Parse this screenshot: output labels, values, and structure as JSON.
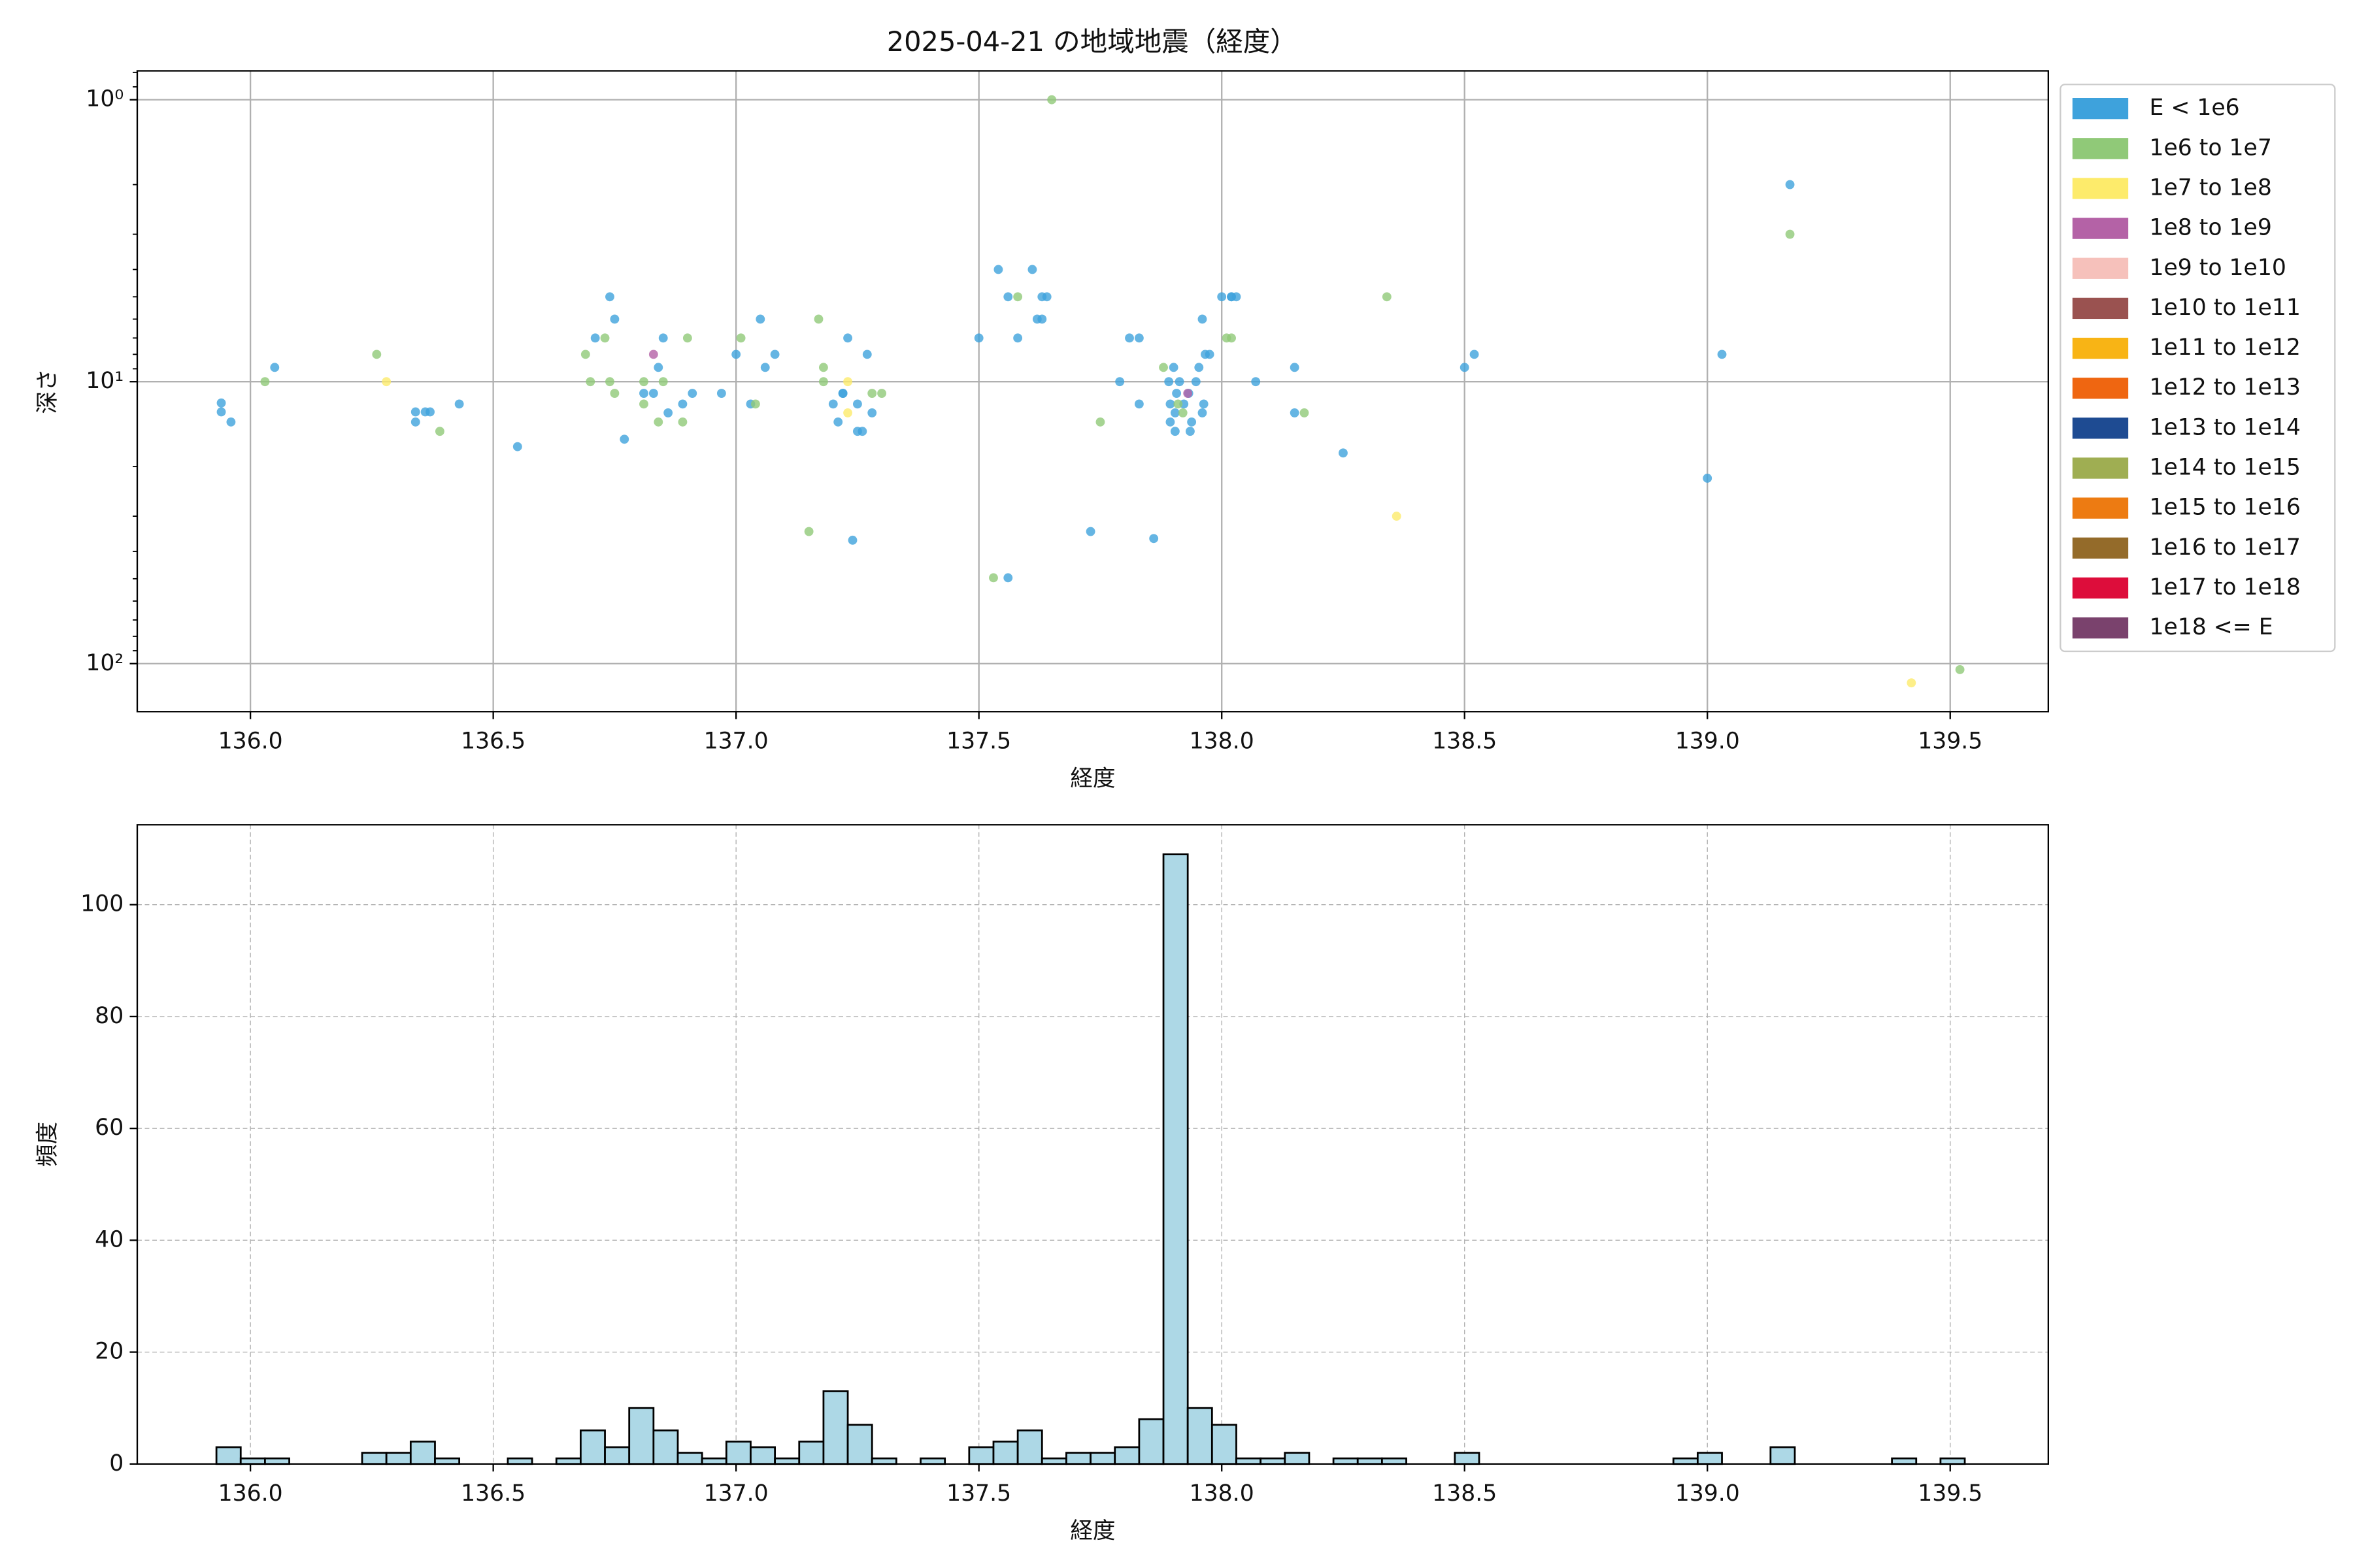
{
  "chart_data": [
    {
      "type": "scatter",
      "title": "2025-04-21 の地域地震（経度）",
      "xlabel": "経度",
      "ylabel": "深さ",
      "xlim": [
        135.767,
        139.702
      ],
      "xticks": [
        {
          "value": 136,
          "label": "136.0"
        },
        {
          "value": 136.5,
          "label": "136.5"
        },
        {
          "value": 137,
          "label": "137.0"
        },
        {
          "value": 137.5,
          "label": "137.5"
        },
        {
          "value": 138,
          "label": "138.0"
        },
        {
          "value": 138.5,
          "label": "138.5"
        },
        {
          "value": 139,
          "label": "139.0"
        },
        {
          "value": 139.5,
          "label": "139.5"
        }
      ],
      "ylim": [
        0.79,
        148
      ],
      "y_log": true,
      "y_inverted": true,
      "yticks": [
        {
          "value": 1,
          "label": "10⁰"
        },
        {
          "value": 10,
          "label": "10¹"
        },
        {
          "value": 100,
          "label": "10²"
        }
      ],
      "grid": true,
      "grid_style": "solid",
      "legend": "outside-right",
      "series": [
        {
          "name": "E < 1e6",
          "color": "#3ea2dc",
          "x": [
            135.94,
            135.94,
            135.96,
            136.05,
            136.34,
            136.34,
            136.36,
            136.37,
            136.43,
            136.55,
            136.74,
            136.75,
            136.71,
            136.81,
            136.84,
            136.85,
            136.77,
            136.83,
            136.86,
            136.89,
            136.91,
            136.97,
            137.0,
            137.03,
            137.05,
            137.06,
            137.08,
            137.2,
            137.21,
            137.22,
            137.23,
            137.22,
            137.24,
            137.25,
            137.25,
            137.26,
            137.27,
            137.28,
            137.5,
            137.54,
            137.56,
            137.56,
            137.58,
            137.61,
            137.62,
            137.63,
            137.64,
            137.63,
            137.73,
            137.79,
            137.81,
            137.83,
            137.83,
            137.86,
            137.891,
            137.901,
            137.907,
            137.894,
            137.904,
            137.894,
            137.904,
            137.913,
            137.922,
            137.932,
            137.938,
            137.947,
            137.953,
            137.963,
            137.966,
            137.975,
            137.935,
            137.96,
            137.96,
            138.0,
            138.02,
            138.02,
            138.03,
            138.07,
            138.15,
            138.15,
            138.25,
            138.5,
            138.52,
            139.0,
            139.03,
            139.17
          ],
          "y": [
            11.9,
            12.8,
            13.9,
            8.9,
            12.8,
            13.9,
            12.8,
            12.8,
            12.0,
            17.0,
            5.0,
            6.0,
            7.0,
            11.0,
            8.9,
            7.0,
            16.0,
            11.0,
            12.9,
            12.0,
            11.0,
            11.0,
            8.0,
            12.0,
            6.0,
            8.9,
            8.0,
            12.0,
            13.9,
            11.0,
            7.0,
            11.0,
            36.5,
            15.0,
            12.0,
            15.0,
            8.0,
            12.9,
            7.0,
            4.0,
            5.0,
            49.6,
            7.0,
            4.0,
            6.0,
            5.0,
            5.0,
            6.0,
            34,
            10,
            7,
            7,
            12,
            36,
            10,
            8.9,
            11.0,
            12.0,
            12.9,
            13.9,
            15.0,
            10,
            12.0,
            11.0,
            13.9,
            10,
            8.9,
            12.0,
            8.0,
            8.0,
            15.0,
            6.0,
            12.9,
            5,
            5,
            5,
            5,
            10,
            8.9,
            12.9,
            17.9,
            8.9,
            8.0,
            22,
            8.0,
            2.0
          ]
        },
        {
          "name": "1e6 to 1e7",
          "color": "#90c978",
          "x": [
            136.03,
            136.26,
            136.39,
            136.7,
            136.69,
            136.73,
            136.74,
            136.75,
            136.81,
            136.81,
            136.84,
            136.85,
            136.89,
            136.9,
            137.01,
            137.04,
            137.17,
            137.18,
            137.18,
            137.15,
            137.28,
            137.3,
            137.53,
            137.58,
            137.65,
            137.75,
            137.88,
            137.91,
            137.92,
            138.01,
            138.02,
            138.17,
            138.34,
            139.17,
            139.52
          ],
          "y": [
            10,
            8,
            15,
            10,
            8,
            7,
            10,
            11,
            12,
            10,
            13.9,
            10,
            13.9,
            7,
            7,
            12,
            6,
            8.9,
            10,
            34,
            11,
            11,
            49.6,
            5,
            1.0,
            13.9,
            8.9,
            12,
            12.9,
            7,
            7,
            12.9,
            5,
            3.0,
            105
          ]
        },
        {
          "name": "1e7 to 1e8",
          "color": "#fdeb6b",
          "x": [
            136.28,
            137.23,
            137.23,
            138.36,
            139.42
          ],
          "y": [
            10,
            10,
            12.9,
            30,
            117
          ]
        },
        {
          "name": "1e8 to 1e9",
          "color": "#b462a6",
          "x": [
            136.83,
            137.93
          ],
          "y": [
            8,
            11
          ]
        },
        {
          "name": "1e9 to 1e10",
          "color": "#f6c1bb",
          "x": [],
          "y": []
        },
        {
          "name": "1e10 to 1e11",
          "color": "#9a5250",
          "x": [],
          "y": []
        },
        {
          "name": "1e11 to 1e12",
          "color": "#f8b415",
          "x": [],
          "y": []
        },
        {
          "name": "1e12 to 1e13",
          "color": "#ef6611",
          "x": [],
          "y": []
        },
        {
          "name": "1e13 to 1e14",
          "color": "#1e4b92",
          "x": [],
          "y": []
        },
        {
          "name": "1e14 to 1e15",
          "color": "#9fae52",
          "x": [],
          "y": []
        },
        {
          "name": "1e15 to 1e16",
          "color": "#ed7b12",
          "x": [],
          "y": []
        },
        {
          "name": "1e16 to 1e17",
          "color": "#946b2a",
          "x": [],
          "y": []
        },
        {
          "name": "1e17 to 1e18",
          "color": "#dd0d3b",
          "x": [],
          "y": []
        },
        {
          "name": "1e18 <= E",
          "color": "#7a426d",
          "x": [],
          "y": []
        }
      ]
    },
    {
      "type": "histogram",
      "xlabel": "経度",
      "ylabel": "頻度",
      "color": "#add8e6",
      "edgecolor": "#000000",
      "xlim": [
        135.767,
        139.702
      ],
      "xticks": [
        {
          "value": 136,
          "label": "136.0"
        },
        {
          "value": 136.5,
          "label": "136.5"
        },
        {
          "value": 137,
          "label": "137.0"
        },
        {
          "value": 137.5,
          "label": "137.5"
        },
        {
          "value": 138,
          "label": "138.0"
        },
        {
          "value": 138.5,
          "label": "138.5"
        },
        {
          "value": 139,
          "label": "139.0"
        },
        {
          "value": 139.5,
          "label": "139.5"
        }
      ],
      "ylim": [
        0,
        114.3
      ],
      "yticks": [
        0,
        20,
        40,
        60,
        80,
        100
      ],
      "grid": true,
      "grid_style": "dashed",
      "bins": [
        135.93,
        135.98,
        136.03,
        136.08,
        136.13,
        136.18,
        136.23,
        136.28,
        136.33,
        136.38,
        136.43,
        136.48,
        136.53,
        136.58,
        136.63,
        136.68,
        136.73,
        136.78,
        136.83,
        136.88,
        136.93,
        136.98,
        137.03,
        137.08,
        137.13,
        137.18,
        137.23,
        137.28,
        137.33,
        137.38,
        137.43,
        137.48,
        137.53,
        137.58,
        137.63,
        137.68,
        137.73,
        137.78,
        137.83,
        137.88,
        137.93,
        137.98,
        138.03,
        138.08,
        138.13,
        138.18,
        138.23,
        138.28,
        138.33,
        138.38,
        138.43,
        138.48,
        138.53,
        138.58,
        138.63,
        138.68,
        138.73,
        138.78,
        138.83,
        138.88,
        138.93,
        138.98,
        139.03,
        139.08,
        139.13,
        139.18,
        139.23,
        139.28,
        139.33,
        139.38,
        139.43,
        139.48,
        139.53
      ],
      "values": [
        3,
        1,
        1,
        0,
        0,
        0,
        2,
        2,
        4,
        1,
        0,
        0,
        1,
        0,
        1,
        6,
        3,
        10,
        6,
        2,
        1,
        4,
        3,
        1,
        4,
        13,
        7,
        1,
        0,
        1,
        0,
        3,
        4,
        6,
        1,
        2,
        2,
        3,
        8,
        109,
        10,
        7,
        1,
        1,
        2,
        0,
        1,
        1,
        1,
        0,
        0,
        2,
        0,
        0,
        0,
        0,
        0,
        0,
        0,
        0,
        1,
        2,
        0,
        0,
        3,
        0,
        0,
        0,
        0,
        1,
        0,
        1
      ]
    }
  ]
}
